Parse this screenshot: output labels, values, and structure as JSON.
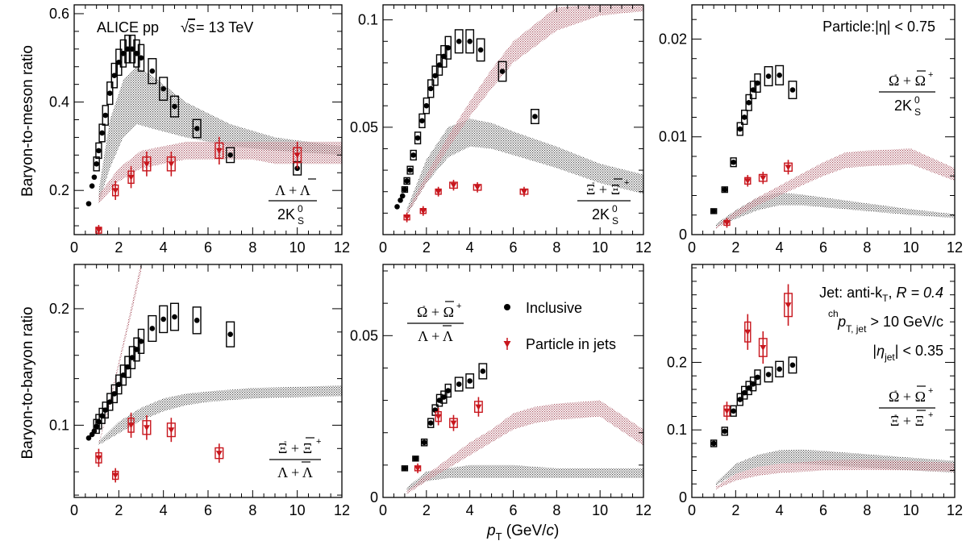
{
  "figure": {
    "x_axis_title": "p_T (GeV/c)",
    "y_axis_title_top": "Baryon-to-meson ratio",
    "y_axis_title_bottom": "Baryon-to-baryon ratio",
    "legend": {
      "inclusive": "Inclusive",
      "jets": "Particle in jets"
    },
    "colors": {
      "inclusive": "#000000",
      "jets": "#c8161d",
      "band_inclusive": "#111111",
      "band_jets": "#8b1a2b"
    }
  },
  "annotations": {
    "experiment": "ALICE pp",
    "energy": "= 13 TeV",
    "particle_eta": "Particle:|η| < 0.75",
    "jet_algo": "Jet: anti-k",
    "jet_R": "R = 0.4",
    "jet_pt": "> 10 GeV/c",
    "jet_eta": "< 0.35"
  },
  "chart_data": [
    {
      "type": "scatter",
      "id": "lambda_k0s",
      "ratio_num": "Λ + Λ",
      "ratio_den": "2K",
      "xlim": [
        0,
        12
      ],
      "ylim": [
        0.1,
        0.62
      ],
      "xticks": [
        0,
        2,
        4,
        6,
        8,
        10,
        12
      ],
      "yticks": [
        0.2,
        0.4,
        0.6
      ],
      "ytick_labels": [
        "0.2",
        "0.4",
        "0.6"
      ],
      "series": [
        {
          "name": "Inclusive",
          "x": [
            0.65,
            0.8,
            0.9,
            1.0,
            1.1,
            1.25,
            1.4,
            1.6,
            1.8,
            2.0,
            2.2,
            2.4,
            2.6,
            2.8,
            3.0,
            3.5,
            4.0,
            4.5,
            5.5,
            7.0,
            10.0
          ],
          "y": [
            0.17,
            0.21,
            0.23,
            0.26,
            0.29,
            0.33,
            0.37,
            0.42,
            0.46,
            0.49,
            0.51,
            0.52,
            0.52,
            0.51,
            0.5,
            0.47,
            0.43,
            0.39,
            0.34,
            0.28,
            0.25
          ]
        },
        {
          "name": "Particle in jets",
          "x": [
            1.1,
            1.85,
            2.55,
            3.25,
            4.35,
            6.5,
            10.0
          ],
          "y": [
            0.11,
            0.2,
            0.23,
            0.26,
            0.26,
            0.29,
            0.28
          ]
        }
      ]
    },
    {
      "type": "scatter",
      "id": "xi_k0s",
      "ratio_num": "Ξ + Ξ",
      "ratio_den": "2K",
      "xlim": [
        0,
        12
      ],
      "ylim": [
        0,
        0.107
      ],
      "xticks": [
        0,
        2,
        4,
        6,
        8,
        10,
        12
      ],
      "yticks": [
        0.05,
        0.1
      ],
      "ytick_labels": [
        "0.05",
        "0.1"
      ],
      "series": [
        {
          "name": "Inclusive",
          "x": [
            0.65,
            0.8,
            0.9,
            1.0,
            1.1,
            1.25,
            1.4,
            1.6,
            1.8,
            2.0,
            2.2,
            2.4,
            2.6,
            2.8,
            3.0,
            3.5,
            4.0,
            4.5,
            5.5,
            7.0
          ],
          "y": [
            0.013,
            0.016,
            0.018,
            0.021,
            0.025,
            0.03,
            0.037,
            0.045,
            0.053,
            0.06,
            0.068,
            0.074,
            0.079,
            0.083,
            0.087,
            0.09,
            0.09,
            0.086,
            0.076,
            0.055
          ]
        },
        {
          "name": "Particle in jets",
          "x": [
            1.1,
            1.85,
            2.55,
            3.25,
            4.35,
            6.5
          ],
          "y": [
            0.008,
            0.011,
            0.02,
            0.023,
            0.022,
            0.02
          ]
        }
      ]
    },
    {
      "type": "scatter",
      "id": "omega_k0s",
      "ratio_num": "Ω + Ω",
      "ratio_den": "2K",
      "xlim": [
        0,
        12
      ],
      "ylim": [
        0,
        0.0235
      ],
      "xticks": [
        0,
        2,
        4,
        6,
        8,
        10,
        12
      ],
      "yticks": [
        0,
        0.01,
        0.02
      ],
      "ytick_labels": [
        "0",
        "0.01",
        "0.02"
      ],
      "series": [
        {
          "name": "Inclusive",
          "x": [
            1.0,
            1.5,
            1.9,
            2.2,
            2.4,
            2.6,
            2.8,
            3.0,
            3.5,
            4.0,
            4.6
          ],
          "y": [
            0.0024,
            0.0046,
            0.0074,
            0.0108,
            0.012,
            0.0135,
            0.0148,
            0.0155,
            0.0162,
            0.0163,
            0.0148
          ]
        },
        {
          "name": "Particle in jets",
          "x": [
            1.6,
            2.55,
            3.25,
            4.4
          ],
          "y": [
            0.0012,
            0.0055,
            0.0058,
            0.0069
          ]
        }
      ]
    },
    {
      "type": "scatter",
      "id": "xi_lambda",
      "ratio_num": "Ξ + Ξ",
      "ratio_den": "Λ + Λ",
      "xlim": [
        0,
        12
      ],
      "ylim": [
        0.038,
        0.238
      ],
      "xticks": [
        0,
        2,
        4,
        6,
        8,
        10,
        12
      ],
      "yticks": [
        0.1,
        0.2
      ],
      "ytick_labels": [
        "0.1",
        "0.2"
      ],
      "series": [
        {
          "name": "Inclusive",
          "x": [
            0.65,
            0.8,
            0.9,
            1.0,
            1.1,
            1.25,
            1.4,
            1.6,
            1.8,
            2.0,
            2.2,
            2.4,
            2.6,
            2.8,
            3.0,
            3.5,
            4.0,
            4.5,
            5.5,
            7.0
          ],
          "y": [
            0.089,
            0.092,
            0.095,
            0.099,
            0.103,
            0.108,
            0.113,
            0.12,
            0.127,
            0.135,
            0.143,
            0.15,
            0.158,
            0.165,
            0.172,
            0.183,
            0.191,
            0.193,
            0.19,
            0.178
          ]
        },
        {
          "name": "Particle in jets",
          "x": [
            1.1,
            1.85,
            2.55,
            3.25,
            4.35,
            6.5
          ],
          "y": [
            0.072,
            0.057,
            0.1,
            0.098,
            0.096,
            0.076
          ]
        }
      ]
    },
    {
      "type": "scatter",
      "id": "omega_lambda",
      "ratio_num": "Ω + Ω",
      "ratio_den": "Λ + Λ",
      "xlim": [
        0,
        12
      ],
      "ylim": [
        0,
        0.072
      ],
      "xticks": [
        0,
        2,
        4,
        6,
        8,
        10,
        12
      ],
      "yticks": [
        0,
        0.05
      ],
      "ytick_labels": [
        "0",
        "0.05"
      ],
      "series": [
        {
          "name": "Inclusive",
          "x": [
            1.0,
            1.5,
            1.9,
            2.2,
            2.4,
            2.6,
            2.8,
            3.0,
            3.5,
            4.0,
            4.6
          ],
          "y": [
            0.009,
            0.012,
            0.017,
            0.023,
            0.027,
            0.03,
            0.031,
            0.033,
            0.035,
            0.036,
            0.039
          ]
        },
        {
          "name": "Particle in jets",
          "x": [
            1.6,
            2.55,
            3.25,
            4.4
          ],
          "y": [
            0.009,
            0.025,
            0.023,
            0.028
          ]
        }
      ]
    },
    {
      "type": "scatter",
      "id": "omega_xi",
      "ratio_num": "Ω + Ω",
      "ratio_den": "Ξ + Ξ",
      "xlim": [
        0,
        12
      ],
      "ylim": [
        0,
        0.345
      ],
      "xticks": [
        0,
        2,
        4,
        6,
        8,
        10,
        12
      ],
      "yticks": [
        0,
        0.1,
        0.2
      ],
      "ytick_labels": [
        "0",
        "0.1",
        "0.2"
      ],
      "series": [
        {
          "name": "Inclusive",
          "x": [
            1.0,
            1.5,
            1.9,
            2.2,
            2.4,
            2.6,
            2.8,
            3.0,
            3.5,
            4.0,
            4.6
          ],
          "y": [
            0.08,
            0.098,
            0.128,
            0.145,
            0.155,
            0.162,
            0.168,
            0.178,
            0.182,
            0.19,
            0.196
          ]
        },
        {
          "name": "Particle in jets",
          "x": [
            1.6,
            2.55,
            3.25,
            4.4
          ],
          "y": [
            0.128,
            0.245,
            0.222,
            0.285
          ]
        }
      ]
    }
  ]
}
